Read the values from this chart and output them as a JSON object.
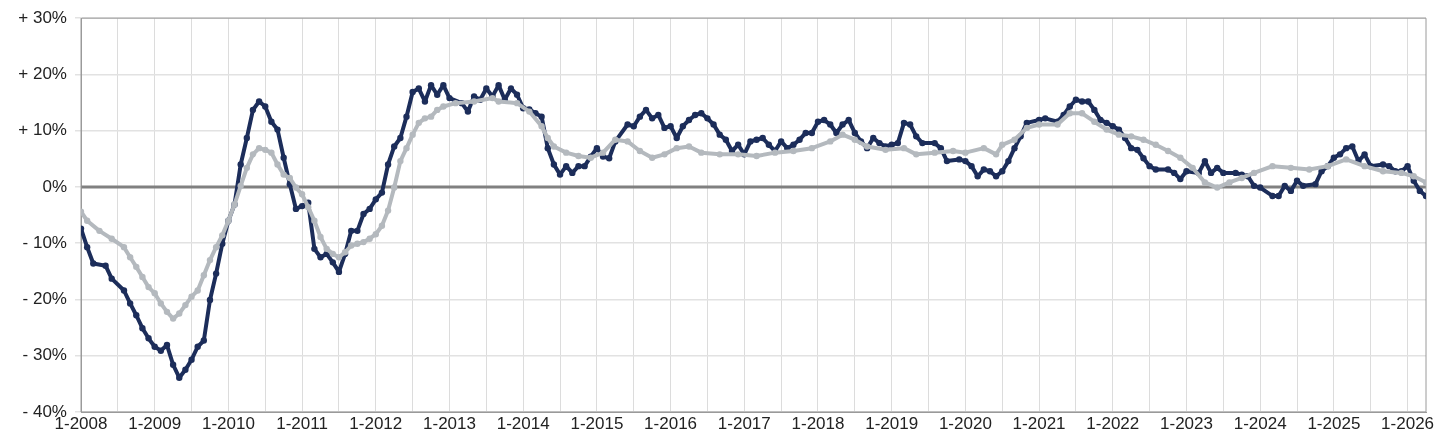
{
  "chart_data": {
    "type": "line",
    "marker": "circle",
    "grid": true,
    "legend": false,
    "xlim": [
      "2008-01",
      "2026-04"
    ],
    "xticks": [
      {
        "value": "2008-01",
        "label": "1-2008"
      },
      {
        "value": "2008-07",
        "label": null
      },
      {
        "value": "2009-01",
        "label": "1-2009"
      },
      {
        "value": "2009-07",
        "label": null
      },
      {
        "value": "2010-01",
        "label": "1-2010"
      },
      {
        "value": "2010-07",
        "label": null
      },
      {
        "value": "2011-01",
        "label": "1-2011"
      },
      {
        "value": "2011-07",
        "label": null
      },
      {
        "value": "2012-01",
        "label": "1-2012"
      },
      {
        "value": "2012-07",
        "label": null
      },
      {
        "value": "2013-01",
        "label": "1-2013"
      },
      {
        "value": "2013-07",
        "label": null
      },
      {
        "value": "2014-01",
        "label": "1-2014"
      },
      {
        "value": "2014-07",
        "label": null
      },
      {
        "value": "2015-01",
        "label": "1-2015"
      },
      {
        "value": "2015-07",
        "label": null
      },
      {
        "value": "2016-01",
        "label": "1-2016"
      },
      {
        "value": "2016-07",
        "label": null
      },
      {
        "value": "2017-01",
        "label": "1-2017"
      },
      {
        "value": "2017-07",
        "label": null
      },
      {
        "value": "2018-01",
        "label": "1-2018"
      },
      {
        "value": "2018-07",
        "label": null
      },
      {
        "value": "2019-01",
        "label": "1-2019"
      },
      {
        "value": "2019-07",
        "label": null
      },
      {
        "value": "2020-01",
        "label": "1-2020"
      },
      {
        "value": "2020-07",
        "label": null
      },
      {
        "value": "2021-01",
        "label": "1-2021"
      },
      {
        "value": "2021-07",
        "label": null
      },
      {
        "value": "2022-01",
        "label": "1-2022"
      },
      {
        "value": "2022-07",
        "label": null
      },
      {
        "value": "2023-01",
        "label": "1-2023"
      },
      {
        "value": "2023-07",
        "label": null
      },
      {
        "value": "2024-01",
        "label": "1-2024"
      },
      {
        "value": "2024-07",
        "label": null
      },
      {
        "value": "2025-01",
        "label": "1-2025"
      },
      {
        "value": "2025-07",
        "label": null
      },
      {
        "value": "2026-01",
        "label": "1-2026"
      }
    ],
    "ylim": [
      -40,
      30
    ],
    "yticks": [
      {
        "value": -40,
        "label": "- 40%"
      },
      {
        "value": -30,
        "label": "- 30%"
      },
      {
        "value": -20,
        "label": "- 20%"
      },
      {
        "value": -10,
        "label": "- 10%"
      },
      {
        "value": 0,
        "label": "0%"
      },
      {
        "value": 10,
        "label": "+ 10%"
      },
      {
        "value": 20,
        "label": "+ 20%"
      },
      {
        "value": 30,
        "label": "+ 30%"
      }
    ],
    "ref_lines": [
      {
        "axis": "y",
        "value": 0,
        "color": "#808080"
      }
    ],
    "series": [
      {
        "color": "#b4b9be",
        "x": [
          "2008-01",
          "2008-02",
          "2008-04",
          "2008-06",
          "2008-08",
          "2008-09",
          "2008-10",
          "2008-11",
          "2008-12",
          "2009-01",
          "2009-02",
          "2009-03",
          "2009-04",
          "2009-05",
          "2009-06",
          "2009-07",
          "2009-08",
          "2009-09",
          "2009-10",
          "2009-11",
          "2009-12",
          "2010-01",
          "2010-02",
          "2010-03",
          "2010-04",
          "2010-05",
          "2010-06",
          "2010-07",
          "2010-08",
          "2010-09",
          "2010-10",
          "2010-11",
          "2010-12",
          "2011-01",
          "2011-02",
          "2011-03",
          "2011-04",
          "2011-05",
          "2011-06",
          "2011-07",
          "2011-08",
          "2011-09",
          "2011-10",
          "2011-11",
          "2011-12",
          "2012-01",
          "2012-02",
          "2012-03",
          "2012-04",
          "2012-05",
          "2012-06",
          "2012-07",
          "2012-08",
          "2012-09",
          "2012-10",
          "2012-11",
          "2012-12",
          "2013-02",
          "2013-05",
          "2013-08",
          "2013-09",
          "2013-12",
          "2014-02",
          "2014-04",
          "2014-05",
          "2014-06",
          "2014-08",
          "2014-10",
          "2014-12",
          "2015-02",
          "2015-04",
          "2015-06",
          "2015-08",
          "2015-10",
          "2015-12",
          "2016-02",
          "2016-04",
          "2016-06",
          "2016-09",
          "2016-12",
          "2017-03",
          "2017-06",
          "2017-09",
          "2017-12",
          "2018-03",
          "2018-05",
          "2018-07",
          "2018-09",
          "2018-12",
          "2019-03",
          "2019-05",
          "2019-08",
          "2019-11",
          "2020-01",
          "2020-04",
          "2020-06",
          "2020-07",
          "2020-09",
          "2020-11",
          "2021-01",
          "2021-04",
          "2021-06",
          "2021-08",
          "2021-10",
          "2021-12",
          "2022-02",
          "2022-04",
          "2022-06",
          "2022-08",
          "2022-10",
          "2022-12",
          "2023-02",
          "2023-04",
          "2023-06",
          "2023-08",
          "2023-10",
          "2023-12",
          "2024-03",
          "2024-06",
          "2024-09",
          "2024-12",
          "2025-03",
          "2025-06",
          "2025-09",
          "2025-12",
          "2026-02",
          "2026-04"
        ],
        "values": [
          -4.4,
          -6,
          -7.8,
          -9.2,
          -10.7,
          -12.5,
          -14.2,
          -16,
          -17.8,
          -18.9,
          -20.7,
          -22.2,
          -23.4,
          -22.5,
          -21,
          -19.5,
          -18.4,
          -15.7,
          -13,
          -10.7,
          -8.6,
          -6,
          -3.1,
          0.2,
          3.4,
          5.8,
          6.9,
          6.6,
          6.1,
          4,
          2.2,
          1.6,
          -0.1,
          -1.3,
          -3.6,
          -6,
          -8.9,
          -11,
          -11.9,
          -12.5,
          -11.6,
          -10.4,
          -10.1,
          -9.8,
          -9.2,
          -8.4,
          -6.9,
          -4.2,
          -0.1,
          4.6,
          6.9,
          9.3,
          11.4,
          12.2,
          12.5,
          13.7,
          14.3,
          14.9,
          15.2,
          15.8,
          15.2,
          14.9,
          13.4,
          10.8,
          8.7,
          7.2,
          6.1,
          5.5,
          5.2,
          6.1,
          8.4,
          8.1,
          6.4,
          5.2,
          5.8,
          6.9,
          7.2,
          6.1,
          5.8,
          5.8,
          5.5,
          6.1,
          6.4,
          6.9,
          8.1,
          9.3,
          8.4,
          7.2,
          6.6,
          6.9,
          5.8,
          6.1,
          6.4,
          6.1,
          6.9,
          5.8,
          7.5,
          8.4,
          10.5,
          11.1,
          11.1,
          13.1,
          13.1,
          11.6,
          10.2,
          9.3,
          9,
          8.4,
          7.5,
          6.4,
          5.2,
          3.4,
          0.8,
          -0.1,
          0.8,
          1.6,
          2.5,
          3.7,
          3.4,
          3.1,
          3.7,
          4.9,
          3.7,
          2.8,
          2.5,
          1.9,
          0.8
        ]
      },
      {
        "color": "#1c2d5a",
        "x": [
          "2008-01",
          "2008-02",
          "2008-03",
          "2008-05",
          "2008-06",
          "2008-08",
          "2008-09",
          "2008-10",
          "2008-11",
          "2008-12",
          "2009-01",
          "2009-02",
          "2009-03",
          "2009-04",
          "2009-05",
          "2009-06",
          "2009-07",
          "2009-08",
          "2009-09",
          "2009-10",
          "2009-11",
          "2009-12",
          "2010-01",
          "2010-02",
          "2010-03",
          "2010-04",
          "2010-05",
          "2010-06",
          "2010-07",
          "2010-08",
          "2010-09",
          "2010-10",
          "2010-11",
          "2010-12",
          "2011-01",
          "2011-02",
          "2011-03",
          "2011-04",
          "2011-05",
          "2011-06",
          "2011-07",
          "2011-08",
          "2011-09",
          "2011-10",
          "2011-11",
          "2011-12",
          "2012-01",
          "2012-02",
          "2012-03",
          "2012-04",
          "2012-05",
          "2012-06",
          "2012-07",
          "2012-08",
          "2012-09",
          "2012-10",
          "2012-11",
          "2012-12",
          "2013-01",
          "2013-03",
          "2013-04",
          "2013-05",
          "2013-06",
          "2013-07",
          "2013-08",
          "2013-09",
          "2013-10",
          "2013-11",
          "2013-12",
          "2014-01",
          "2014-02",
          "2014-03",
          "2014-04",
          "2014-05",
          "2014-06",
          "2014-07",
          "2014-08",
          "2014-09",
          "2014-10",
          "2014-11",
          "2014-12",
          "2015-01",
          "2015-02",
          "2015-03",
          "2015-04",
          "2015-06",
          "2015-07",
          "2015-08",
          "2015-09",
          "2015-10",
          "2015-11",
          "2015-12",
          "2016-01",
          "2016-02",
          "2016-03",
          "2016-04",
          "2016-05",
          "2016-06",
          "2016-07",
          "2016-08",
          "2016-09",
          "2016-10",
          "2016-11",
          "2016-12",
          "2017-01",
          "2017-02",
          "2017-03",
          "2017-04",
          "2017-05",
          "2017-06",
          "2017-07",
          "2017-08",
          "2017-09",
          "2017-10",
          "2017-11",
          "2017-12",
          "2018-01",
          "2018-02",
          "2018-03",
          "2018-04",
          "2018-05",
          "2018-06",
          "2018-07",
          "2018-08",
          "2018-09",
          "2018-10",
          "2018-11",
          "2018-12",
          "2019-01",
          "2019-02",
          "2019-03",
          "2019-04",
          "2019-05",
          "2019-06",
          "2019-08",
          "2019-09",
          "2019-10",
          "2019-12",
          "2020-01",
          "2020-02",
          "2020-03",
          "2020-04",
          "2020-05",
          "2020-06",
          "2020-07",
          "2020-08",
          "2020-09",
          "2020-10",
          "2020-11",
          "2021-01",
          "2021-02",
          "2021-04",
          "2021-05",
          "2021-06",
          "2021-07",
          "2021-08",
          "2021-09",
          "2021-10",
          "2021-11",
          "2021-12",
          "2022-01",
          "2022-02",
          "2022-03",
          "2022-04",
          "2022-05",
          "2022-06",
          "2022-07",
          "2022-08",
          "2022-10",
          "2022-11",
          "2022-12",
          "2023-01",
          "2023-03",
          "2023-04",
          "2023-05",
          "2023-06",
          "2023-07",
          "2023-09",
          "2023-10",
          "2023-11",
          "2023-12",
          "2024-01",
          "2024-03",
          "2024-04",
          "2024-05",
          "2024-06",
          "2024-07",
          "2024-08",
          "2024-10",
          "2024-11",
          "2024-12",
          "2025-01",
          "2025-02",
          "2025-03",
          "2025-04",
          "2025-05",
          "2025-06",
          "2025-07",
          "2025-09",
          "2025-10",
          "2025-11",
          "2025-12",
          "2026-01",
          "2026-02",
          "2026-03",
          "2026-04"
        ],
        "values": [
          -7.4,
          -10.7,
          -13.6,
          -14,
          -16.3,
          -18.4,
          -20.7,
          -22.8,
          -25.1,
          -26.9,
          -28.4,
          -29.1,
          -28.1,
          -31.6,
          -33.9,
          -32.5,
          -30.7,
          -28.4,
          -27.3,
          -20.1,
          -15.4,
          -10.1,
          -6,
          -3.1,
          4,
          8.7,
          13.7,
          15.2,
          14.3,
          11.6,
          10.2,
          5.2,
          0.5,
          -3.9,
          -3.4,
          -2.8,
          -11,
          -12.5,
          -11.9,
          -13.4,
          -15.1,
          -11.9,
          -7.8,
          -7.8,
          -4.8,
          -3.9,
          -2.2,
          -1,
          4,
          7.2,
          8.7,
          12.5,
          16.9,
          17.5,
          15.2,
          18.1,
          16.4,
          18.1,
          15.8,
          14.9,
          13.4,
          16.1,
          15.5,
          17.5,
          16.1,
          18.1,
          15.5,
          17.5,
          16.4,
          14,
          13.8,
          13.1,
          12.5,
          6.9,
          4,
          2.2,
          3.7,
          2.5,
          3.7,
          3.7,
          5.4,
          6.9,
          5.4,
          5.1,
          8.1,
          11.1,
          10.8,
          12.5,
          13.7,
          12.2,
          12.8,
          10.5,
          10.8,
          8.7,
          10.8,
          11.9,
          12.8,
          13.1,
          12.2,
          11.1,
          9.3,
          8.4,
          6.4,
          7.5,
          5.8,
          8.1,
          8.4,
          8.7,
          7.5,
          6.4,
          8.1,
          6.9,
          7.5,
          8.4,
          9.6,
          9.6,
          11.6,
          11.9,
          11.1,
          9.6,
          11.1,
          11.9,
          9.6,
          8.1,
          6.9,
          8.7,
          7.8,
          7.2,
          7.5,
          7.8,
          11.4,
          11.1,
          9,
          7.8,
          7.8,
          6.9,
          4.6,
          4.9,
          4.6,
          3.7,
          1.9,
          3.1,
          2.8,
          1.9,
          2.8,
          4.6,
          6.9,
          9,
          11.4,
          11.9,
          12.2,
          11.6,
          12.8,
          14.3,
          15.5,
          15.2,
          15.2,
          13.7,
          11.9,
          11.4,
          10.8,
          10.2,
          8.7,
          6.9,
          6.6,
          5.1,
          3.7,
          3.1,
          3.1,
          2.5,
          1.4,
          2.8,
          2.5,
          4.6,
          2.5,
          3.4,
          2.5,
          2.5,
          2.2,
          1.9,
          0.2,
          -0.1,
          -1.6,
          -1.6,
          0.2,
          -0.7,
          1.1,
          0.2,
          0.5,
          2.8,
          3.7,
          5.2,
          5.8,
          6.9,
          7.2,
          4.6,
          5.8,
          3.7,
          4,
          3.7,
          2.8,
          2.8,
          3.7,
          1.1,
          -0.7,
          -1.6
        ]
      }
    ]
  }
}
